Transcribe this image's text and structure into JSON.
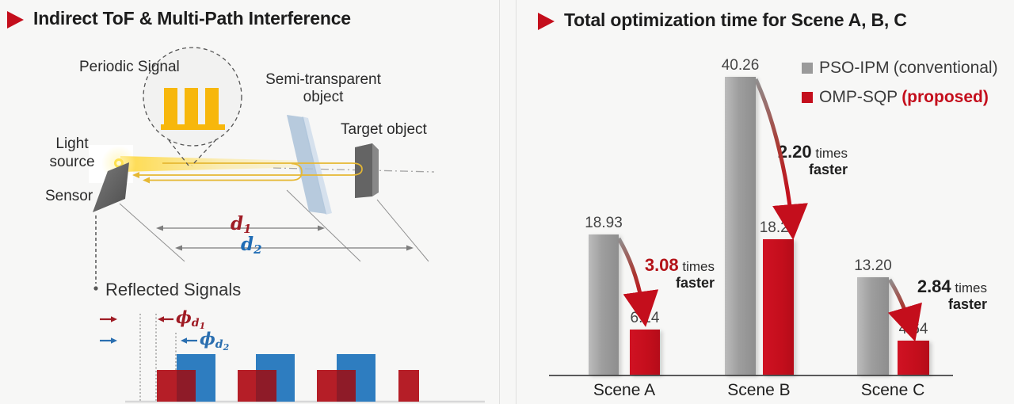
{
  "colors": {
    "accent_red": "#c40e1c",
    "bar_gray": "#9c9c9c",
    "signal_blue": "#2e7dc0",
    "signal_red": "#b51e27",
    "signal_overlap": "#8e1b28",
    "dark_red": "#9f1b24",
    "blue": "#1f6cb5",
    "wave_yellow": "#f7b70c"
  },
  "left_panel": {
    "title": "Indirect ToF & Multi-Path Interference",
    "bubble_label": "Periodic Signal",
    "semi_transparent_line1": "Semi-transparent",
    "semi_transparent_line2": "object",
    "target_label": "Target object",
    "light_source_line1": "Light",
    "light_source_line2": "source",
    "sensor_label": "Sensor",
    "reflected_label": "Reflected Signals",
    "d1": {
      "base": "d",
      "sub": "1"
    },
    "d2": {
      "base": "d",
      "sub": "2"
    },
    "phi1": {
      "base": "ϕ",
      "sub": "d",
      "subsub": "1"
    },
    "phi2": {
      "base": "ϕ",
      "sub": "d",
      "subsub": "2"
    }
  },
  "right_panel": {
    "title": "Total optimization time for Scene A, B, C",
    "legend": [
      {
        "label": "PSO-IPM",
        "qualifier": "(conventional)"
      },
      {
        "label": "OMP-SQP",
        "qualifier": "(proposed)"
      }
    ]
  },
  "chart_data": {
    "type": "bar",
    "title": "Total optimization time for Scene A, B, C",
    "categories": [
      "Scene A",
      "Scene B",
      "Scene C"
    ],
    "series": [
      {
        "name": "PSO-IPM (conventional)",
        "color": "#9c9c9c",
        "values": [
          18.93,
          40.26,
          13.2
        ]
      },
      {
        "name": "OMP-SQP (proposed)",
        "color": "#c40e1c",
        "values": [
          6.14,
          18.26,
          4.64
        ]
      }
    ],
    "annotations": [
      {
        "factor": "3.08",
        "unit": "times",
        "line2": "faster",
        "factor_color": "#b31217"
      },
      {
        "factor": "2.20",
        "unit": "times",
        "line2": "faster",
        "factor_color": "#1f1f1f"
      },
      {
        "factor": "2.84",
        "unit": "times",
        "line2": "faster",
        "factor_color": "#1f1f1f"
      }
    ],
    "ylim": [
      0,
      42
    ],
    "grid": false,
    "legend_position": "top-right",
    "xlabel": "",
    "ylabel": ""
  }
}
